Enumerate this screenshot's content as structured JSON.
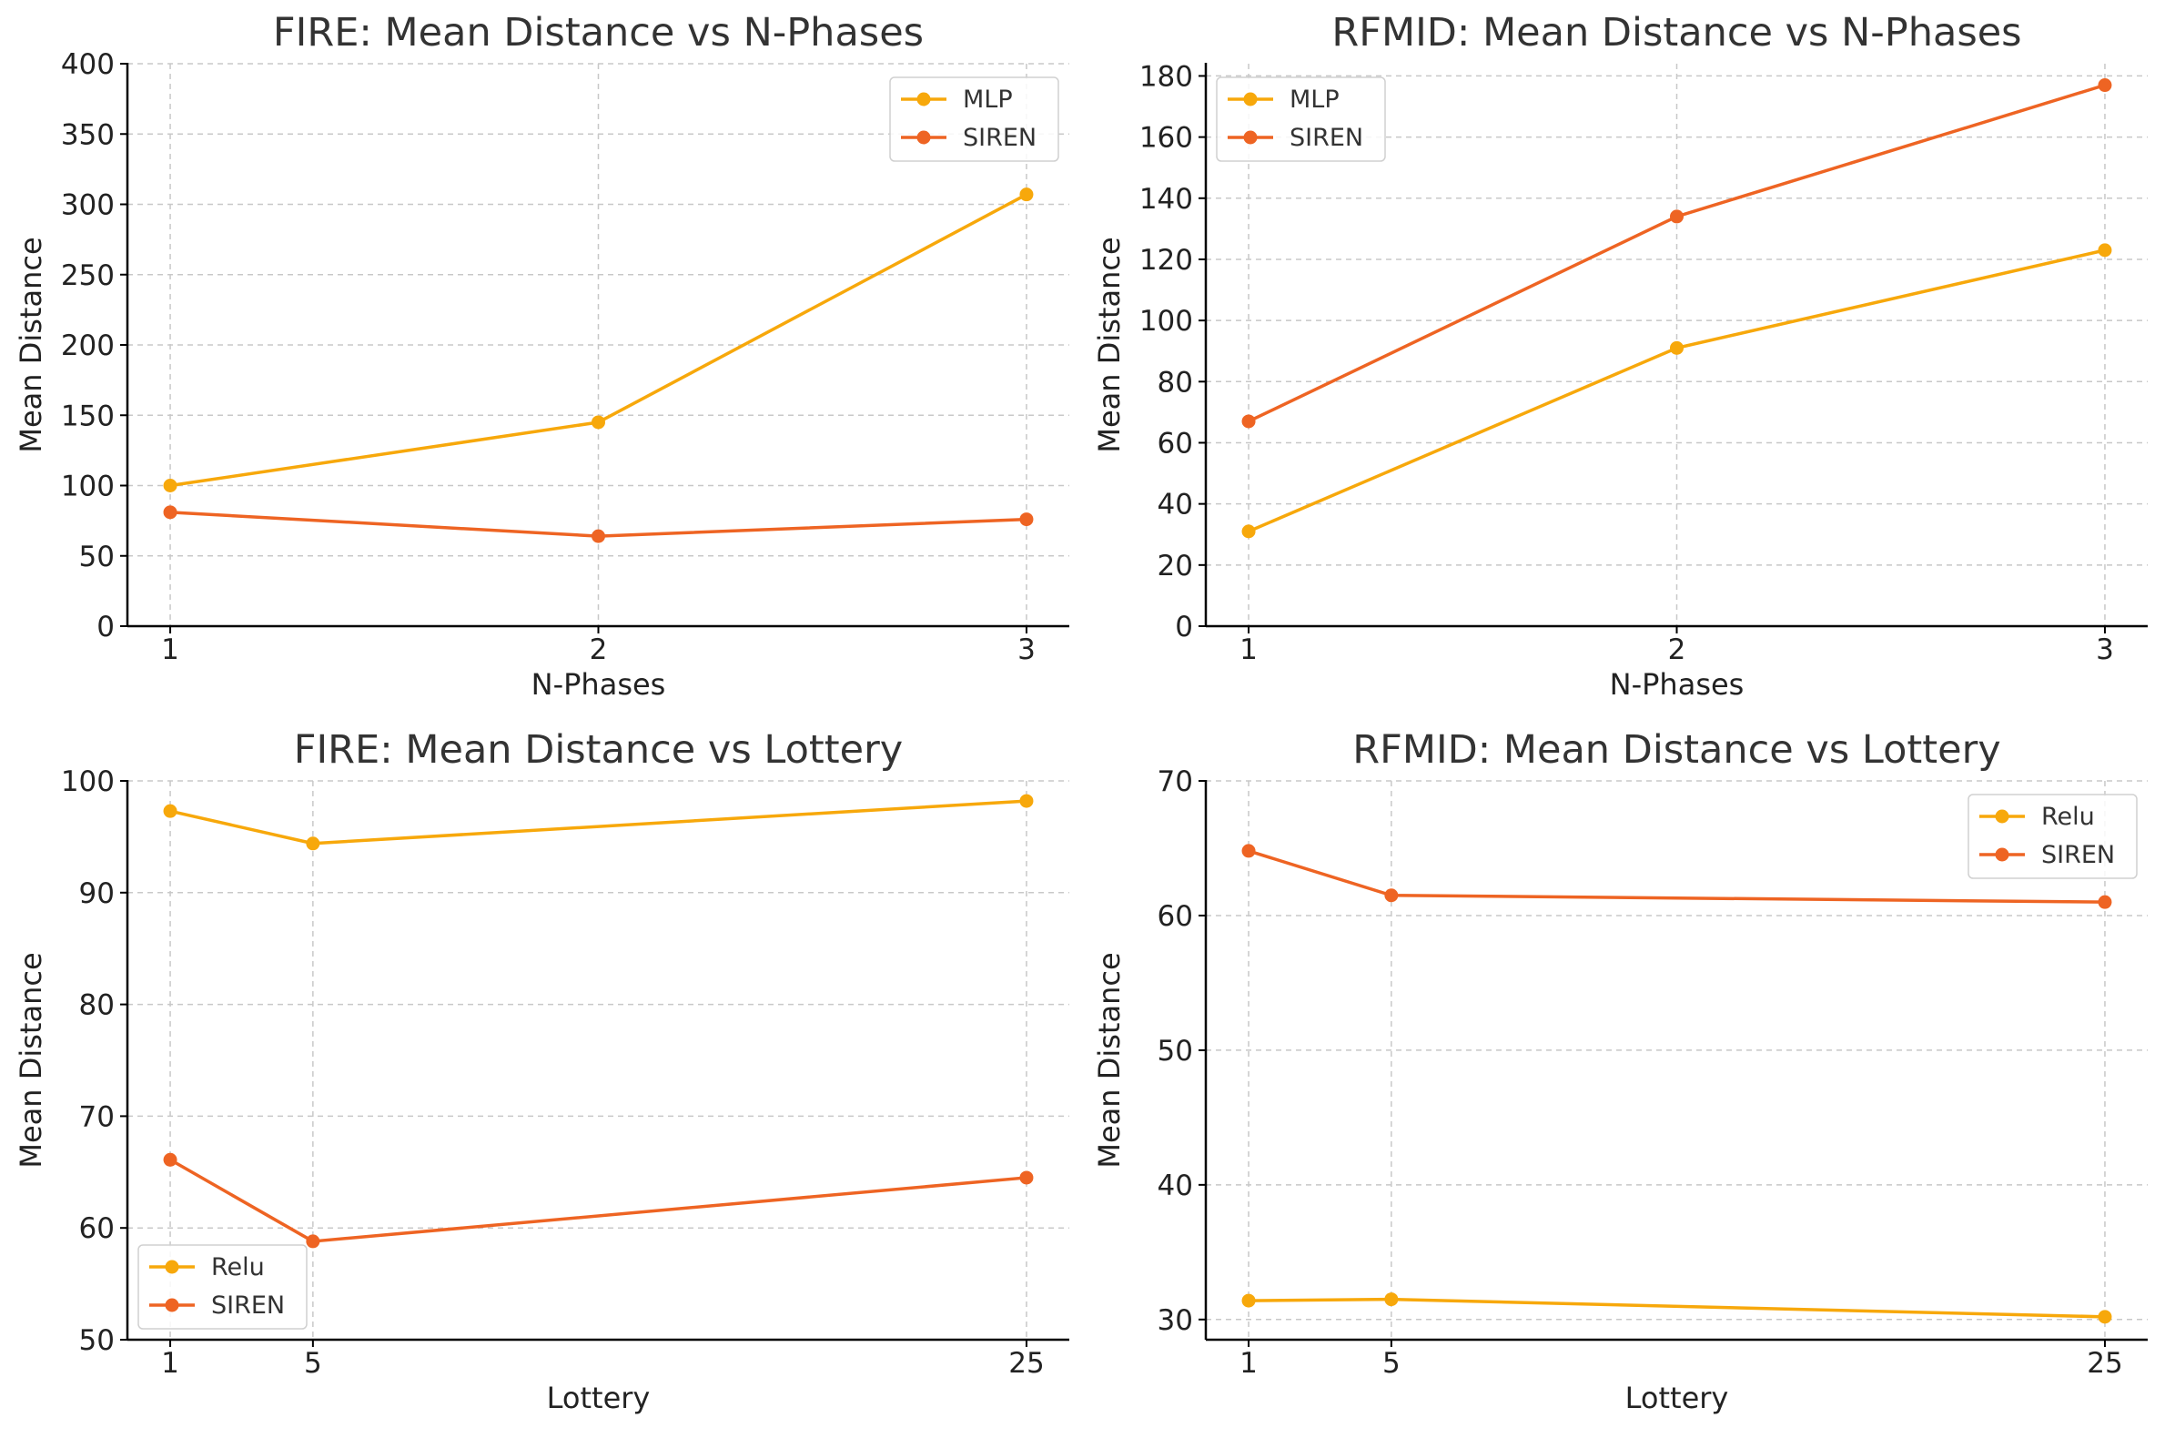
{
  "chart_data": [
    {
      "type": "line",
      "title": "FIRE: Mean Distance vs N-Phases",
      "xlabel": "N-Phases",
      "ylabel": "Mean Distance",
      "x": [
        1,
        2,
        3
      ],
      "x_tick_labels": [
        "1",
        "2",
        "3"
      ],
      "xlim": [
        0.9,
        3.1
      ],
      "ylim": [
        0,
        400
      ],
      "y_ticks": [
        0,
        50,
        100,
        150,
        200,
        250,
        300,
        350,
        400
      ],
      "grid": true,
      "legend_position": "top-right",
      "series": [
        {
          "name": "MLP",
          "values": [
            100,
            145,
            307
          ],
          "color": "#F7A80B"
        },
        {
          "name": "SIREN",
          "values": [
            81,
            64,
            76
          ],
          "color": "#EE6423"
        }
      ]
    },
    {
      "type": "line",
      "title": "RFMID: Mean Distance vs N-Phases",
      "xlabel": "N-Phases",
      "ylabel": "Mean Distance",
      "x": [
        1,
        2,
        3
      ],
      "x_tick_labels": [
        "1",
        "2",
        "3"
      ],
      "xlim": [
        0.9,
        3.1
      ],
      "ylim": [
        0,
        184
      ],
      "y_ticks": [
        0,
        20,
        40,
        60,
        80,
        100,
        120,
        140,
        160,
        180
      ],
      "grid": true,
      "legend_position": "top-left",
      "series": [
        {
          "name": "MLP",
          "values": [
            31,
            91,
            123
          ],
          "color": "#F7A80B"
        },
        {
          "name": "SIREN",
          "values": [
            67,
            134,
            177
          ],
          "color": "#EE6423"
        }
      ]
    },
    {
      "type": "line",
      "title": "FIRE: Mean Distance vs Lottery",
      "xlabel": "Lottery",
      "ylabel": "Mean Distance",
      "x": [
        1,
        5,
        25
      ],
      "x_tick_labels": [
        "1",
        "5",
        "25"
      ],
      "xlim": [
        -0.2,
        26.2
      ],
      "ylim": [
        50,
        100
      ],
      "y_ticks": [
        50,
        60,
        70,
        80,
        90,
        100
      ],
      "grid": true,
      "legend_position": "bottom-left",
      "series": [
        {
          "name": "Relu",
          "values": [
            97.3,
            94.4,
            98.2
          ],
          "color": "#F7A80B"
        },
        {
          "name": "SIREN",
          "values": [
            66.1,
            58.8,
            64.5
          ],
          "color": "#EE6423"
        }
      ]
    },
    {
      "type": "line",
      "title": "RFMID: Mean Distance vs Lottery",
      "xlabel": "Lottery",
      "ylabel": "Mean Distance",
      "x": [
        1,
        5,
        25
      ],
      "x_tick_labels": [
        "1",
        "5",
        "25"
      ],
      "xlim": [
        -0.2,
        26.2
      ],
      "ylim": [
        28.5,
        70
      ],
      "y_ticks": [
        30,
        40,
        50,
        60,
        70
      ],
      "grid": true,
      "legend_position": "top-right",
      "series": [
        {
          "name": "Relu",
          "values": [
            31.4,
            31.5,
            30.2
          ],
          "color": "#F7A80B"
        },
        {
          "name": "SIREN",
          "values": [
            64.8,
            61.5,
            61.0
          ],
          "color": "#EE6423"
        }
      ]
    }
  ]
}
